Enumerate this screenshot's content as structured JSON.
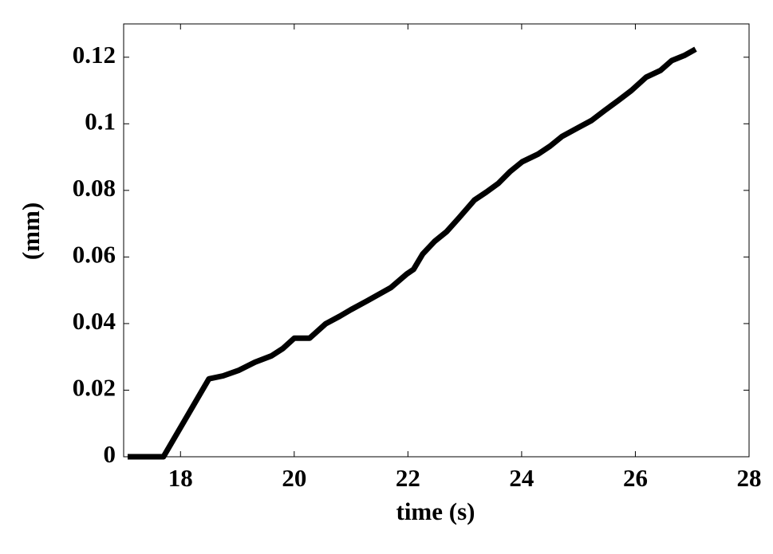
{
  "chart_data": {
    "type": "line",
    "xlabel": "time (s)",
    "ylabel": "(mm)",
    "x": [
      17.07,
      17.7,
      18.5,
      18.75,
      19.03,
      19.31,
      19.6,
      19.8,
      20.0,
      20.27,
      20.55,
      20.8,
      21.0,
      21.28,
      21.7,
      21.98,
      22.1,
      22.26,
      22.47,
      22.68,
      22.89,
      23.17,
      23.38,
      23.59,
      23.8,
      24.01,
      24.29,
      24.5,
      24.71,
      24.99,
      25.23,
      25.46,
      25.7,
      25.93,
      26.19,
      26.44,
      26.64,
      26.86,
      27.06
    ],
    "series": [
      {
        "color": "#000000",
        "values": [
          0,
          0,
          0.0234,
          0.0243,
          0.026,
          0.0284,
          0.0303,
          0.0325,
          0.0356,
          0.0356,
          0.0399,
          0.0422,
          0.0442,
          0.0468,
          0.0508,
          0.0549,
          0.0563,
          0.0609,
          0.0647,
          0.0676,
          0.0716,
          0.0771,
          0.0795,
          0.0821,
          0.0857,
          0.0886,
          0.0909,
          0.0933,
          0.0962,
          0.0988,
          0.101,
          0.104,
          0.107,
          0.11,
          0.114,
          0.116,
          0.119,
          0.1205,
          0.1224
        ]
      }
    ],
    "xlim": [
      17,
      28
    ],
    "xticks": [
      18,
      20,
      22,
      24,
      26,
      28
    ],
    "ylim": [
      0,
      0.13
    ],
    "yticks": [
      0,
      0.02,
      0.04,
      0.06,
      0.08,
      0.1,
      0.12
    ],
    "grid": false
  }
}
